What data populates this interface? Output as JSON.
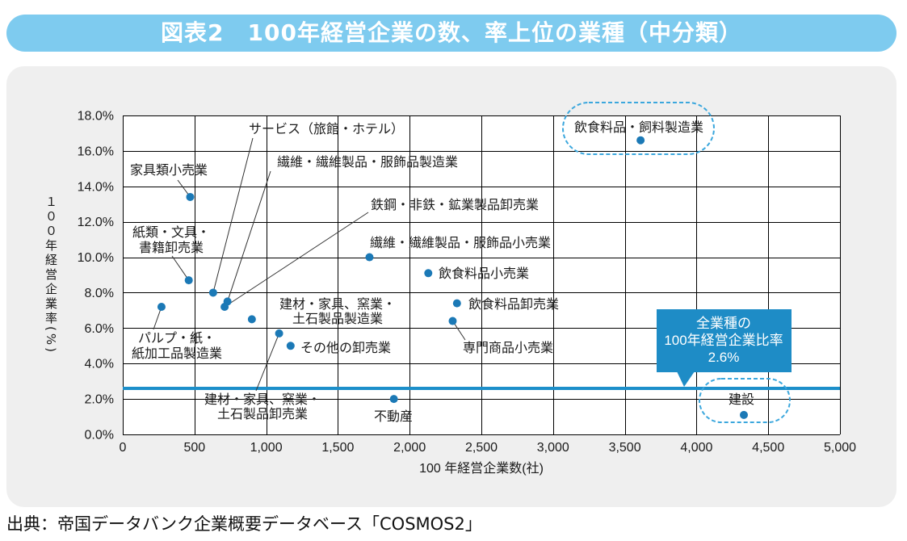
{
  "title": "図表2　100年経営企業の数、率上位の業種（中分類）",
  "source": "出典：帝国データバンク企業概要データベース「COSMOS2」",
  "colors": {
    "banner": "#7ecbef",
    "panel": "#efefef",
    "point": "#1b79b6",
    "reference_line": "#1c8fca",
    "callout": "#1e8cc6",
    "highlight_outline": "#3ba7dd",
    "leader_line": "#333333"
  },
  "chart_data": {
    "type": "scatter",
    "xlabel": "100 年経営企業数(社)",
    "ylabel": "１００年経営企業率(%)",
    "xlim": [
      0,
      5000
    ],
    "ylim": [
      0,
      18
    ],
    "grid": true,
    "x_ticks": [
      {
        "value": 0,
        "label": "0"
      },
      {
        "value": 500,
        "label": "500"
      },
      {
        "value": 1000,
        "label": "1,000"
      },
      {
        "value": 1500,
        "label": "1,500"
      },
      {
        "value": 2000,
        "label": "2,000"
      },
      {
        "value": 2500,
        "label": "2,500"
      },
      {
        "value": 3000,
        "label": "3,000"
      },
      {
        "value": 3500,
        "label": "3,500"
      },
      {
        "value": 4000,
        "label": "4,000"
      },
      {
        "value": 4500,
        "label": "4,500"
      },
      {
        "value": 5000,
        "label": "5,000"
      }
    ],
    "y_ticks": [
      {
        "value": 0,
        "label": "0.0%"
      },
      {
        "value": 2,
        "label": "2.0%"
      },
      {
        "value": 4,
        "label": "4.0%"
      },
      {
        "value": 6,
        "label": "6.0%"
      },
      {
        "value": 8,
        "label": "8.0%"
      },
      {
        "value": 10,
        "label": "10.0%"
      },
      {
        "value": 12,
        "label": "12.0%"
      },
      {
        "value": 14,
        "label": "14.0%"
      },
      {
        "value": 16,
        "label": "16.0%"
      },
      {
        "value": 18,
        "label": "18.0%"
      }
    ],
    "points": [
      {
        "label": [
          "飲食料品・飼料製造業"
        ],
        "x": 3610,
        "y": 16.6,
        "highlight": true
      },
      {
        "label": [
          "家具類小売業"
        ],
        "x": 470,
        "y": 13.4
      },
      {
        "label": [
          "繊維・繊維製品・服飾品小売業"
        ],
        "x": 1720,
        "y": 10.0
      },
      {
        "label": [
          "飲食料品小売業"
        ],
        "x": 2130,
        "y": 9.1
      },
      {
        "label": [
          "紙類・文具・",
          "書籍卸売業"
        ],
        "x": 460,
        "y": 8.7
      },
      {
        "label": [
          "サービス（旅館・ホテル）"
        ],
        "x": 630,
        "y": 8.0
      },
      {
        "label": [
          "繊維・繊維製品・服飾品製造業"
        ],
        "x": 730,
        "y": 7.5
      },
      {
        "label": [
          "鉄鋼・非鉄・鉱業製品卸売業"
        ],
        "x": 710,
        "y": 7.2
      },
      {
        "label": [
          "パルプ・紙・",
          "紙加工品製造業"
        ],
        "x": 270,
        "y": 7.2
      },
      {
        "label": [
          "飲食料品卸売業"
        ],
        "x": 2330,
        "y": 7.4
      },
      {
        "label": [
          "建材・家具、窯業・",
          "土石製品製造業"
        ],
        "x": 900,
        "y": 6.5
      },
      {
        "label": [
          "専門商品小売業"
        ],
        "x": 2300,
        "y": 6.4
      },
      {
        "label": [
          "建材・家具、窯業・",
          "土石製品卸売業"
        ],
        "x": 1090,
        "y": 5.7
      },
      {
        "label": [
          "その他の卸売業"
        ],
        "x": 1170,
        "y": 5.0
      },
      {
        "label": [
          "不動産"
        ],
        "x": 1890,
        "y": 2.0
      },
      {
        "label": [
          "建設"
        ],
        "x": 4330,
        "y": 1.1,
        "highlight": true
      }
    ],
    "reference_line": {
      "y": 2.6,
      "callout": [
        "全業種の",
        "100年経営企業比率",
        "2.6%"
      ]
    }
  }
}
